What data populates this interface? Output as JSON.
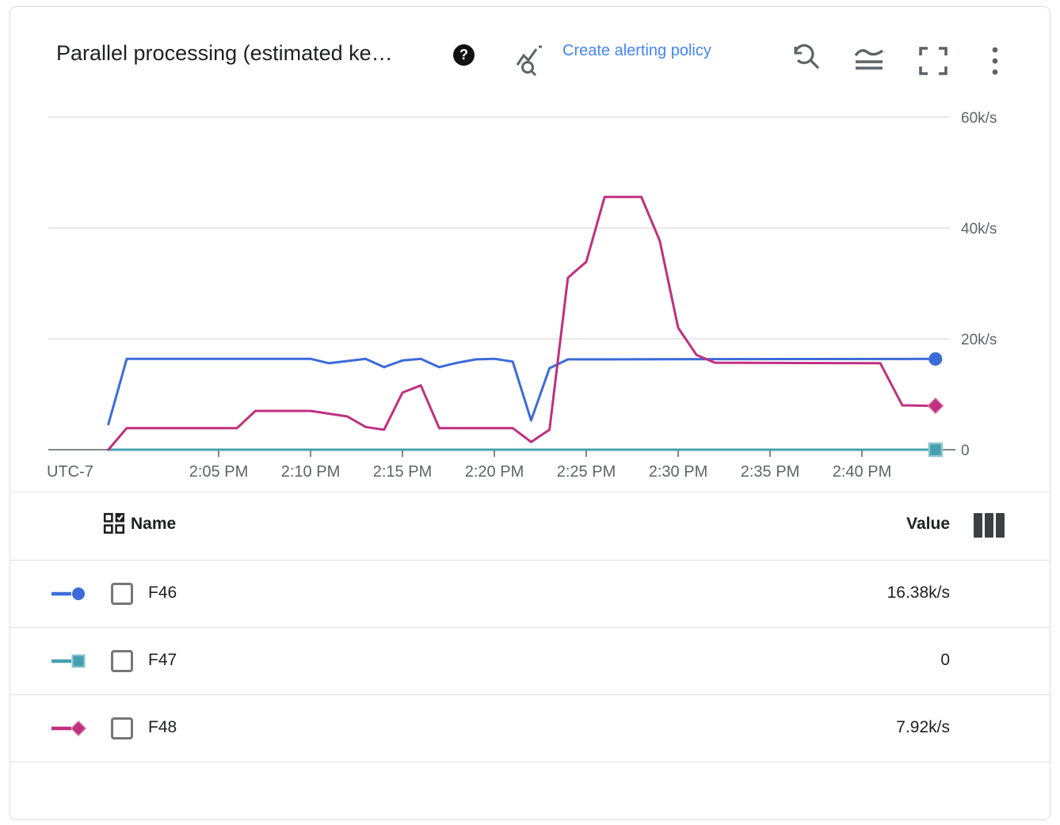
{
  "header": {
    "title": "Parallel processing (estimated ke…",
    "help_icon": "help-filled",
    "explore_icon": "query-stats",
    "alert_link_label": "Create alerting policy",
    "toolbar_icons": [
      "zoom-reset",
      "toggle-legend",
      "fullscreen",
      "more-options"
    ]
  },
  "chart_data": {
    "type": "line",
    "unit": "k/s",
    "x_axis": {
      "timezone_label": "UTC-7",
      "ticks": [
        {
          "minutes": 5,
          "label": "2:05 PM"
        },
        {
          "minutes": 10,
          "label": "2:10 PM"
        },
        {
          "minutes": 15,
          "label": "2:15 PM"
        },
        {
          "minutes": 20,
          "label": "2:20 PM"
        },
        {
          "minutes": 25,
          "label": "2:25 PM"
        },
        {
          "minutes": 30,
          "label": "2:30 PM"
        },
        {
          "minutes": 35,
          "label": "2:35 PM"
        },
        {
          "minutes": 40,
          "label": "2:40 PM"
        }
      ],
      "time_reference": "minutes after 2:00 PM"
    },
    "y_axis": {
      "ticks": [
        {
          "value": 0,
          "label": "0"
        },
        {
          "value": 20,
          "label": "20k/s"
        },
        {
          "value": 40,
          "label": "40k/s"
        },
        {
          "value": 60,
          "label": "60k/s"
        }
      ],
      "range": [
        0,
        60
      ],
      "grid": true,
      "label_side": "right"
    },
    "series": [
      {
        "name": "F46",
        "color": "#3C6BD9",
        "marker": "circle",
        "marker_edge": "#3C6BD9",
        "current_value_label": "16.38k/s",
        "points": [
          [
            -1,
            4.6
          ],
          [
            0,
            16.4
          ],
          [
            10,
            16.4
          ],
          [
            11,
            15.6
          ],
          [
            13,
            16.4
          ],
          [
            14,
            14.9
          ],
          [
            15,
            16.1
          ],
          [
            16,
            16.4
          ],
          [
            17,
            14.9
          ],
          [
            18,
            15.7
          ],
          [
            19,
            16.3
          ],
          [
            20,
            16.4
          ],
          [
            21,
            15.9
          ],
          [
            22,
            5.3
          ],
          [
            23,
            14.7
          ],
          [
            24,
            16.3
          ],
          [
            44,
            16.38
          ]
        ]
      },
      {
        "name": "F47",
        "color": "#45A1AF",
        "marker": "square",
        "marker_edge": "#8FC7D0",
        "current_value_label": "0",
        "points": [
          [
            -1,
            0
          ],
          [
            44,
            0
          ]
        ]
      },
      {
        "name": "F48",
        "color": "#C0307F",
        "marker": "diamond",
        "marker_edge": "#D678AE",
        "current_value_label": "7.92k/s",
        "points": [
          [
            -1,
            0
          ],
          [
            0,
            3.9
          ],
          [
            6,
            3.9
          ],
          [
            7,
            7.0
          ],
          [
            10,
            7.0
          ],
          [
            12,
            6.0
          ],
          [
            13,
            4.1
          ],
          [
            14,
            3.6
          ],
          [
            15,
            10.3
          ],
          [
            16,
            11.6
          ],
          [
            17,
            3.9
          ],
          [
            21,
            3.9
          ],
          [
            22,
            1.4
          ],
          [
            23,
            3.6
          ],
          [
            24,
            31.0
          ],
          [
            24.3,
            31.9
          ],
          [
            25,
            33.9
          ],
          [
            26,
            45.6
          ],
          [
            28,
            45.6
          ],
          [
            29,
            37.7
          ],
          [
            30,
            22.0
          ],
          [
            31,
            17.1
          ],
          [
            32,
            15.7
          ],
          [
            41,
            15.6
          ],
          [
            42.2,
            8.0
          ],
          [
            44,
            7.92
          ]
        ]
      }
    ]
  },
  "legend": {
    "select_all_icon": "checkbox-grid",
    "name_header": "Name",
    "value_header": "Value",
    "columns_icon": "columns",
    "rows": [
      {
        "name": "F46",
        "value": "16.38k/s",
        "checked": false
      },
      {
        "name": "F47",
        "value": "0",
        "checked": false
      },
      {
        "name": "F48",
        "value": "7.92k/s",
        "checked": false
      }
    ]
  }
}
